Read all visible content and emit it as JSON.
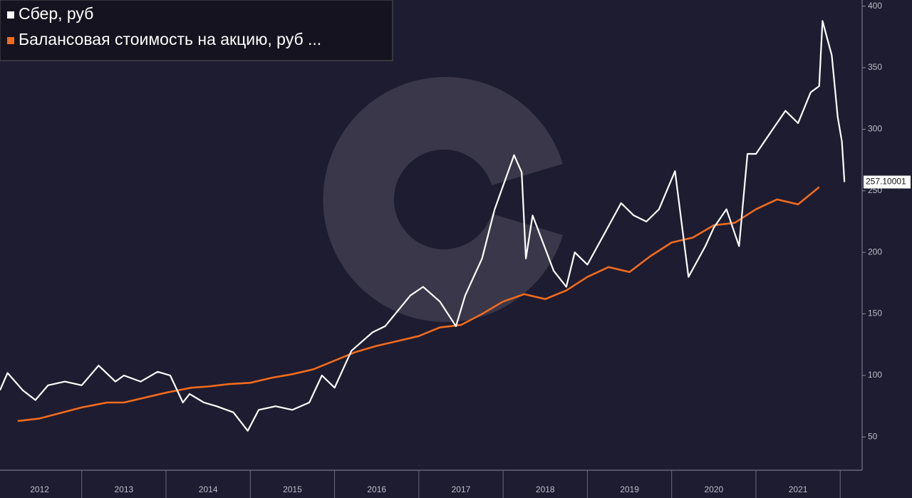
{
  "chart_data": {
    "type": "line",
    "xlim": [
      2012.03,
      2022.26
    ],
    "ylim": [
      23,
      405
    ],
    "yticks": [
      50,
      100,
      150,
      200,
      250,
      300,
      350,
      400
    ],
    "xticks": [
      {
        "value": 2012.5,
        "label": "2012"
      },
      {
        "value": 2013.5,
        "label": "2013"
      },
      {
        "value": 2014.5,
        "label": "2014"
      },
      {
        "value": 2015.5,
        "label": "2015"
      },
      {
        "value": 2016.5,
        "label": "2016"
      },
      {
        "value": 2017.5,
        "label": "2017"
      },
      {
        "value": 2018.5,
        "label": "2018"
      },
      {
        "value": 2019.5,
        "label": "2019"
      },
      {
        "value": 2020.5,
        "label": "2020"
      },
      {
        "value": 2021.5,
        "label": "2021"
      }
    ],
    "legend": "top-left",
    "series": [
      {
        "name": "Сбер, руб",
        "color": "#ffffff",
        "x": [
          2012.03,
          2012.12,
          2012.3,
          2012.45,
          2012.6,
          2012.8,
          2013.0,
          2013.2,
          2013.4,
          2013.5,
          2013.7,
          2013.9,
          2014.05,
          2014.2,
          2014.28,
          2014.45,
          2014.6,
          2014.8,
          2014.97,
          2015.1,
          2015.3,
          2015.5,
          2015.7,
          2015.85,
          2016.0,
          2016.2,
          2016.45,
          2016.6,
          2016.9,
          2017.05,
          2017.25,
          2017.44,
          2017.55,
          2017.75,
          2017.9,
          2018.13,
          2018.22,
          2018.27,
          2018.35,
          2018.6,
          2018.75,
          2018.85,
          2019.0,
          2019.2,
          2019.4,
          2019.55,
          2019.7,
          2019.85,
          2020.04,
          2020.2,
          2020.4,
          2020.5,
          2020.65,
          2020.8,
          2020.9,
          2021.0,
          2021.2,
          2021.35,
          2021.5,
          2021.65,
          2021.75,
          2021.79,
          2021.9,
          2021.97,
          2022.02,
          2022.05
        ],
        "values": [
          88,
          102,
          88,
          80,
          92,
          95,
          92,
          108,
          95,
          100,
          95,
          103,
          100,
          78,
          85,
          78,
          75,
          70,
          55,
          72,
          75,
          72,
          78,
          100,
          90,
          120,
          135,
          140,
          165,
          172,
          160,
          140,
          165,
          195,
          235,
          279,
          265,
          195,
          230,
          185,
          172,
          200,
          190,
          215,
          240,
          230,
          225,
          235,
          266,
          180,
          205,
          220,
          235,
          205,
          280,
          280,
          300,
          315,
          305,
          330,
          335,
          388,
          360,
          310,
          290,
          257.10001
        ]
      },
      {
        "name": "Балансовая стоимость на акцию, руб ...",
        "color": "#f26b1d",
        "x": [
          2012.24,
          2012.5,
          2013.0,
          2013.3,
          2013.5,
          2014.0,
          2014.3,
          2014.5,
          2014.75,
          2015.0,
          2015.25,
          2015.5,
          2015.75,
          2016.0,
          2016.25,
          2016.5,
          2016.75,
          2017.0,
          2017.25,
          2017.5,
          2017.75,
          2018.0,
          2018.25,
          2018.5,
          2018.75,
          2019.0,
          2019.25,
          2019.5,
          2019.75,
          2020.0,
          2020.25,
          2020.5,
          2020.75,
          2021.0,
          2021.25,
          2021.5,
          2021.75
        ],
        "values": [
          63,
          65,
          74,
          78,
          78,
          86,
          90,
          91,
          93,
          94,
          98,
          101,
          105,
          112,
          119,
          124,
          128,
          132,
          139,
          141,
          150,
          160,
          166,
          162,
          169,
          180,
          188,
          184,
          197,
          208,
          212,
          222,
          224,
          235,
          243,
          239,
          253
        ]
      }
    ]
  }
}
